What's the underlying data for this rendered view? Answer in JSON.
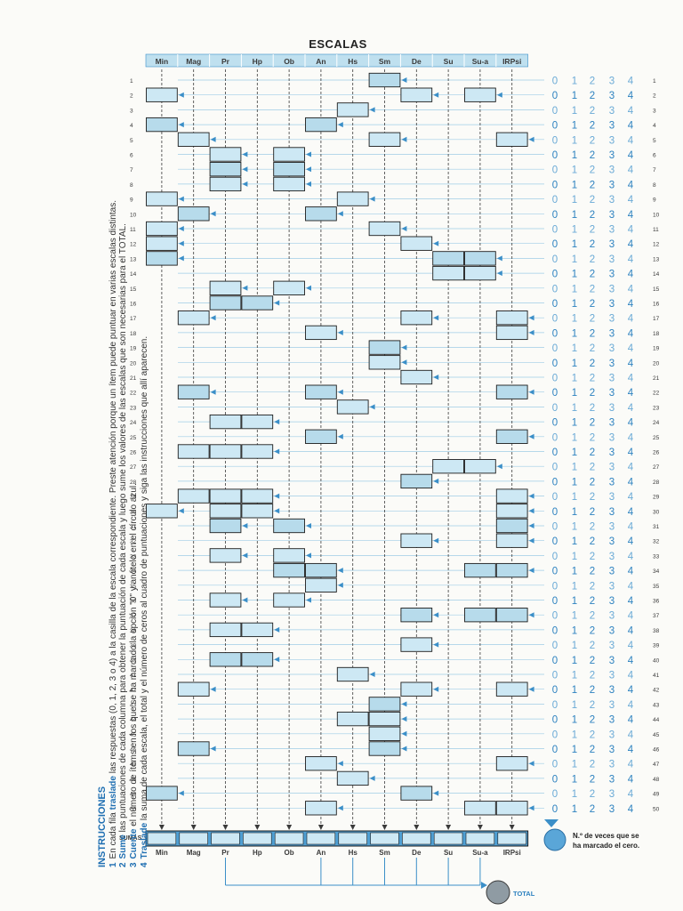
{
  "title": "ESCALAS",
  "scales": [
    "Min",
    "Mag",
    "Pr",
    "Hp",
    "Ob",
    "An",
    "Hs",
    "Sm",
    "De",
    "Su",
    "Su-a",
    "IRPsi"
  ],
  "options": [
    "0",
    "1",
    "2",
    "3",
    "4"
  ],
  "sumas_label": "SUMAS",
  "total_label": "TOTAL",
  "zero_note": [
    "N.º de veces que se",
    "ha marcado el cero."
  ],
  "instructions": {
    "title": "INSTRUCCIONES",
    "steps": [
      {
        "num": "1",
        "pre": "En cada fila ",
        "kw": "traslade",
        "post": " las respuestas (0, 1, 2, 3 o 4) a la casilla de la escala correspondiente. Preste atención porque un ítem puede puntuar en varias escalas distintas."
      },
      {
        "num": "2",
        "pre": "",
        "kw": "Sume",
        "post": " las puntuaciones de cada columna para obtener la puntuación de cada escala y luego sume los valores de las escalas que son necesarias para el TOTAL."
      },
      {
        "num": "3",
        "pre": "",
        "kw": "Cuente",
        "post": " el número de ítems en los que se ha marcado la opción \"0\" y anótelo en el círculo azul."
      },
      {
        "num": "4",
        "pre": "",
        "kw": "Traslade",
        "post": " la suma de cada escala, el total y el número de ceros al cuadro de puntuaciones y siga las instrucciones que allí aparecen."
      }
    ]
  },
  "items": [
    {
      "n": "1",
      "scales": [
        "Sm"
      ]
    },
    {
      "n": "2",
      "scales": [
        "Min",
        "De",
        "Su-a"
      ]
    },
    {
      "n": "3",
      "scales": [
        "Hs"
      ]
    },
    {
      "n": "4",
      "scales": [
        "Min",
        "An"
      ]
    },
    {
      "n": "5",
      "scales": [
        "Mag",
        "Sm",
        "IRPsi"
      ]
    },
    {
      "n": "6",
      "scales": [
        "Pr",
        "Ob"
      ]
    },
    {
      "n": "7",
      "scales": [
        "Pr",
        "Ob"
      ]
    },
    {
      "n": "8",
      "scales": [
        "Pr",
        "Ob"
      ]
    },
    {
      "n": "9",
      "scales": [
        "Min",
        "Hs"
      ]
    },
    {
      "n": "10",
      "scales": [
        "Mag",
        "An"
      ]
    },
    {
      "n": "11",
      "scales": [
        "Min",
        "Sm"
      ]
    },
    {
      "n": "12",
      "scales": [
        "Min",
        "De"
      ]
    },
    {
      "n": "13",
      "scales": [
        "Min",
        "Su",
        "Su-a"
      ]
    },
    {
      "n": "14",
      "scales": [
        "Su",
        "Su-a"
      ]
    },
    {
      "n": "15",
      "scales": [
        "Pr",
        "Ob"
      ]
    },
    {
      "n": "16",
      "scales": [
        "Pr",
        "Hp"
      ]
    },
    {
      "n": "17",
      "scales": [
        "Mag",
        "De",
        "IRPsi"
      ]
    },
    {
      "n": "18",
      "scales": [
        "An",
        "IRPsi"
      ]
    },
    {
      "n": "19",
      "scales": [
        "Sm"
      ]
    },
    {
      "n": "20",
      "scales": [
        "Sm"
      ]
    },
    {
      "n": "21",
      "scales": [
        "De"
      ]
    },
    {
      "n": "22",
      "scales": [
        "Mag",
        "An",
        "IRPsi"
      ]
    },
    {
      "n": "23",
      "scales": [
        "Hs"
      ]
    },
    {
      "n": "24",
      "scales": [
        "Pr",
        "Hp"
      ]
    },
    {
      "n": "25",
      "scales": [
        "An",
        "IRPsi"
      ]
    },
    {
      "n": "26",
      "scales": [
        "Mag",
        "Pr",
        "Hp"
      ]
    },
    {
      "n": "27",
      "scales": [
        "Su",
        "Su-a"
      ]
    },
    {
      "n": "28",
      "scales": [
        "De"
      ]
    },
    {
      "n": "29",
      "scales": [
        "Mag",
        "Pr",
        "Hp",
        "IRPsi"
      ]
    },
    {
      "n": "30",
      "scales": [
        "Min",
        "Pr",
        "Hp",
        "IRPsi"
      ]
    },
    {
      "n": "31",
      "scales": [
        "Pr",
        "Ob",
        "IRPsi"
      ]
    },
    {
      "n": "32",
      "scales": [
        "De",
        "IRPsi"
      ]
    },
    {
      "n": "33",
      "scales": [
        "Pr",
        "Ob"
      ]
    },
    {
      "n": "34",
      "scales": [
        "Ob",
        "An",
        "Su-a",
        "IRPsi"
      ]
    },
    {
      "n": "35",
      "scales": [
        "An"
      ]
    },
    {
      "n": "36",
      "scales": [
        "Pr",
        "Ob"
      ]
    },
    {
      "n": "37",
      "scales": [
        "De",
        "Su-a",
        "IRPsi"
      ]
    },
    {
      "n": "38",
      "scales": [
        "Pr",
        "Hp"
      ]
    },
    {
      "n": "39",
      "scales": [
        "De"
      ]
    },
    {
      "n": "40",
      "scales": [
        "Pr",
        "Hp"
      ]
    },
    {
      "n": "41",
      "scales": [
        "Hs"
      ]
    },
    {
      "n": "42",
      "scales": [
        "Mag",
        "De",
        "IRPsi"
      ]
    },
    {
      "n": "43",
      "scales": [
        "Sm"
      ]
    },
    {
      "n": "44",
      "scales": [
        "Hs",
        "Sm"
      ]
    },
    {
      "n": "45",
      "scales": [
        "Sm"
      ]
    },
    {
      "n": "46",
      "scales": [
        "Mag",
        "Sm"
      ]
    },
    {
      "n": "47",
      "scales": [
        "An",
        "IRPsi"
      ]
    },
    {
      "n": "48",
      "scales": [
        "Hs"
      ]
    },
    {
      "n": "49",
      "scales": [
        "Min",
        "De"
      ]
    },
    {
      "n": "50",
      "scales": [
        "An",
        "Su-a",
        "IRPsi"
      ]
    }
  ],
  "colors": {
    "box_fill": "#cde8f4",
    "box_fill_dark": "#b7dbeb",
    "header_fill": "#bfe0ef",
    "accent": "#3b8fc8",
    "guide": "#9fcde6",
    "ink": "#3a3a3a",
    "options": "#2d82c0"
  }
}
